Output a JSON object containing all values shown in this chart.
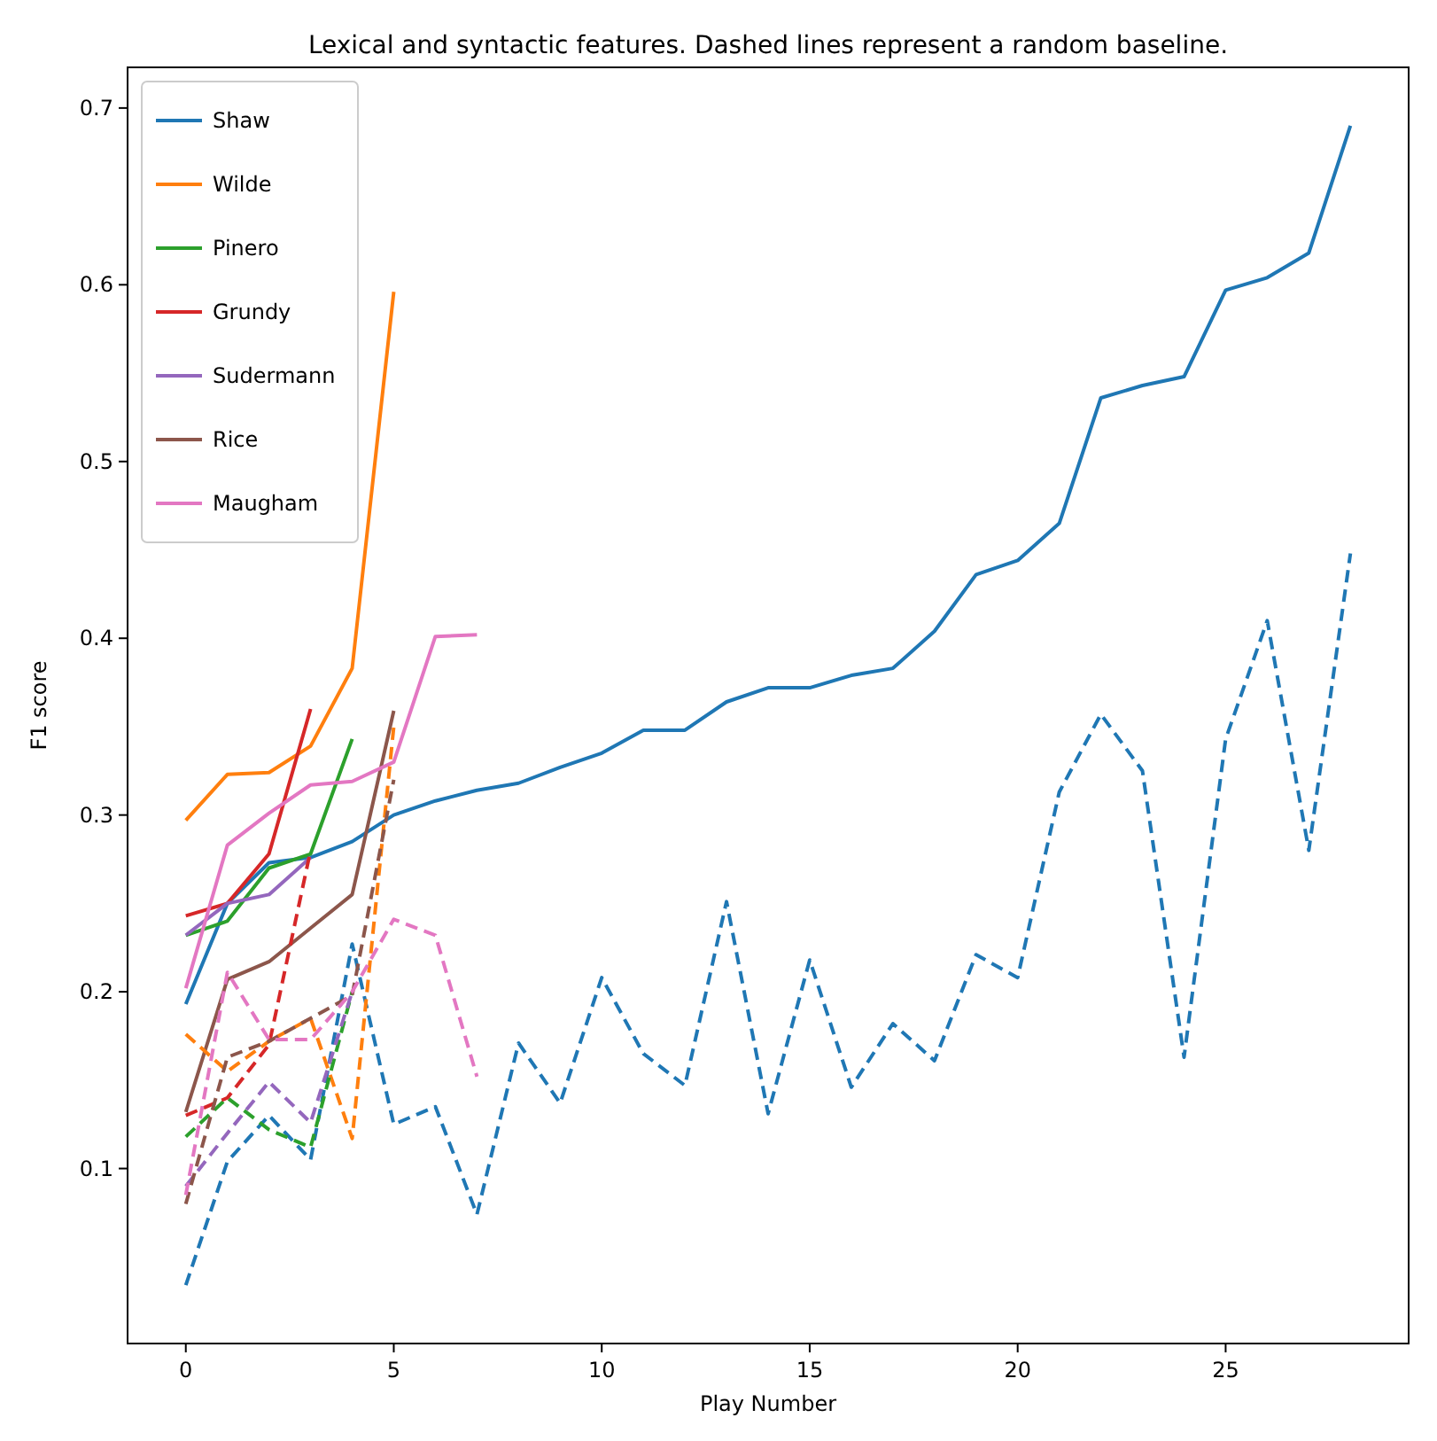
{
  "chart_data": {
    "type": "line",
    "title": "Lexical and syntactic features. Dashed lines represent a random baseline.",
    "xlabel": "Play Number",
    "ylabel": "F1 score",
    "xlim": [
      -1.4,
      29.4
    ],
    "ylim": [
      0.001,
      0.723
    ],
    "xticks": [
      0,
      5,
      10,
      15,
      20,
      25
    ],
    "yticks": [
      0.1,
      0.2,
      0.3,
      0.4,
      0.5,
      0.6,
      0.7
    ],
    "grid": false,
    "legend": "top left",
    "marker": "none",
    "series": [
      {
        "name": "Shaw",
        "color": "#1f77b4",
        "line_style": "solid",
        "x": [
          0,
          1,
          2,
          3,
          4,
          5,
          6,
          7,
          8,
          9,
          10,
          11,
          12,
          13,
          14,
          15,
          16,
          17,
          18,
          19,
          20,
          21,
          22,
          23,
          24,
          25,
          26,
          27,
          28
        ],
        "values": [
          0.193,
          0.25,
          0.273,
          0.276,
          0.285,
          0.3,
          0.308,
          0.314,
          0.318,
          0.327,
          0.335,
          0.348,
          0.348,
          0.364,
          0.372,
          0.372,
          0.379,
          0.383,
          0.404,
          0.436,
          0.444,
          0.465,
          0.536,
          0.543,
          0.548,
          0.597,
          0.604,
          0.618,
          0.69
        ]
      },
      {
        "name": "Wilde",
        "color": "#ff7f0e",
        "line_style": "solid",
        "x": [
          0,
          1,
          2,
          3,
          4,
          5
        ],
        "values": [
          0.297,
          0.323,
          0.324,
          0.339,
          0.383,
          0.596
        ]
      },
      {
        "name": "Pinero",
        "color": "#2ca02c",
        "line_style": "solid",
        "x": [
          0,
          1,
          2,
          3,
          4
        ],
        "values": [
          0.232,
          0.24,
          0.27,
          0.278,
          0.343
        ]
      },
      {
        "name": "Grundy",
        "color": "#d62728",
        "line_style": "solid",
        "x": [
          0,
          1,
          2,
          3
        ],
        "values": [
          0.243,
          0.25,
          0.278,
          0.36
        ]
      },
      {
        "name": "Sudermann",
        "color": "#9467bd",
        "line_style": "solid",
        "x": [
          0,
          1,
          2,
          3
        ],
        "values": [
          0.232,
          0.25,
          0.255,
          0.276
        ]
      },
      {
        "name": "Rice",
        "color": "#8c564b",
        "line_style": "solid",
        "x": [
          0,
          1,
          2,
          3,
          4,
          5
        ],
        "values": [
          0.132,
          0.207,
          0.217,
          0.236,
          0.255,
          0.359
        ]
      },
      {
        "name": "Maugham",
        "color": "#e377c2",
        "line_style": "solid",
        "x": [
          0,
          1,
          2,
          3,
          4,
          5,
          6,
          7
        ],
        "values": [
          0.202,
          0.283,
          0.301,
          0.317,
          0.319,
          0.33,
          0.401,
          0.402
        ]
      },
      {
        "color": "#1f77b4",
        "line_style": "dashed",
        "x": [
          0,
          1,
          2,
          3,
          4,
          5,
          6,
          7,
          8,
          9,
          10,
          11,
          12,
          13,
          14,
          15,
          16,
          17,
          18,
          19,
          20,
          21,
          22,
          23,
          24,
          25,
          26,
          27,
          28
        ],
        "values": [
          0.034,
          0.104,
          0.13,
          0.105,
          0.227,
          0.125,
          0.135,
          0.074,
          0.171,
          0.137,
          0.208,
          0.165,
          0.147,
          0.251,
          0.131,
          0.218,
          0.146,
          0.182,
          0.161,
          0.221,
          0.208,
          0.313,
          0.357,
          0.325,
          0.163,
          0.343,
          0.41,
          0.28,
          0.448
        ]
      },
      {
        "color": "#ff7f0e",
        "line_style": "dashed",
        "x": [
          0,
          1,
          2,
          3,
          4,
          5
        ],
        "values": [
          0.176,
          0.155,
          0.172,
          0.185,
          0.117,
          0.35
        ]
      },
      {
        "color": "#2ca02c",
        "line_style": "dashed",
        "x": [
          0,
          1,
          2,
          3,
          4
        ],
        "values": [
          0.118,
          0.14,
          0.122,
          0.112,
          0.2
        ]
      },
      {
        "color": "#d62728",
        "line_style": "dashed",
        "x": [
          0,
          1,
          2,
          3
        ],
        "values": [
          0.13,
          0.14,
          0.17,
          0.28
        ]
      },
      {
        "color": "#9467bd",
        "line_style": "dashed",
        "x": [
          0,
          1,
          2,
          3,
          4
        ],
        "values": [
          0.09,
          0.12,
          0.149,
          0.126,
          0.2
        ]
      },
      {
        "color": "#8c564b",
        "line_style": "dashed",
        "x": [
          0,
          1,
          2,
          3,
          4,
          5
        ],
        "values": [
          0.08,
          0.163,
          0.172,
          0.185,
          0.198,
          0.32
        ]
      },
      {
        "color": "#e377c2",
        "line_style": "dashed",
        "x": [
          0,
          1,
          2,
          3,
          4,
          5,
          6,
          7
        ],
        "values": [
          0.085,
          0.211,
          0.173,
          0.173,
          0.2,
          0.241,
          0.232,
          0.152
        ]
      }
    ]
  }
}
